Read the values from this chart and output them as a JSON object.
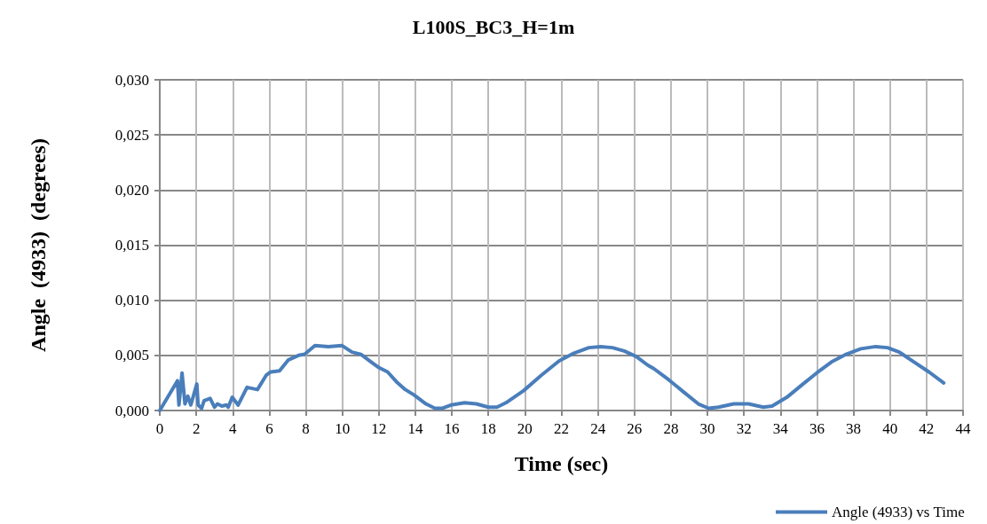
{
  "chart_data": {
    "type": "line",
    "title": "L100S_BC3_H=1m",
    "xlabel": "Time (sec)",
    "ylabel": "Angle  (4933)  (degrees)",
    "x": [
      0,
      0.97,
      1.05,
      1.22,
      1.38,
      1.54,
      1.7,
      2.03,
      2.1,
      2.29,
      2.43,
      2.76,
      3.0,
      3.16,
      3.4,
      3.65,
      3.75,
      3.97,
      4.29,
      4.78,
      5.35,
      5.83,
      6.08,
      6.56,
      7.05,
      7.6,
      7.94,
      8.5,
      9.24,
      9.97,
      10.53,
      11.02,
      11.5,
      12.0,
      12.48,
      12.97,
      13.45,
      13.94,
      14.58,
      15.07,
      15.46,
      15.95,
      16.7,
      17.34,
      18.0,
      18.47,
      18.96,
      19.93,
      20.9,
      21.88,
      22.69,
      23.5,
      24.15,
      24.8,
      25.44,
      26.1,
      26.74,
      27.06,
      27.87,
      28.68,
      29.5,
      30.06,
      30.6,
      31.44,
      32.25,
      33.06,
      33.54,
      34.35,
      35.16,
      35.98,
      36.79,
      37.6,
      38.4,
      39.22,
      39.86,
      40.51,
      41.32,
      42.13,
      42.94
    ],
    "series": [
      {
        "name": "Angle (4933) vs Time",
        "color": "#4a7ebb",
        "values": [
          0,
          0.0027,
          0.0005,
          0.0034,
          0.0006,
          0.0013,
          0.0005,
          0.0024,
          0.0005,
          0.0002,
          0.0009,
          0.0011,
          0.0003,
          0.0006,
          0.0004,
          0.0005,
          0.0003,
          0.0012,
          0.0005,
          0.0021,
          0.0019,
          0.0032,
          0.0035,
          0.0036,
          0.0046,
          0.005,
          0.0051,
          0.0059,
          0.0058,
          0.0059,
          0.0053,
          0.0051,
          0.0045,
          0.0039,
          0.0035,
          0.0026,
          0.0019,
          0.0014,
          0.0006,
          0.0002,
          0.0002,
          0.0005,
          0.0007,
          0.0006,
          0.0003,
          0.0003,
          0.0007,
          0.0018,
          0.0032,
          0.0045,
          0.0052,
          0.0057,
          0.0058,
          0.0057,
          0.0054,
          0.0049,
          0.0041,
          0.0038,
          0.0028,
          0.0017,
          0.0006,
          0.0002,
          0.0003,
          0.0006,
          0.0006,
          0.0003,
          0.0004,
          0.0012,
          0.0023,
          0.0034,
          0.0044,
          0.0051,
          0.0056,
          0.0058,
          0.0057,
          0.0053,
          0.0044,
          0.0035,
          0.0025
        ]
      }
    ],
    "xlim": [
      0,
      44
    ],
    "xticks": [
      0,
      2,
      4,
      6,
      8,
      10,
      12,
      14,
      16,
      18,
      20,
      22,
      24,
      26,
      28,
      30,
      32,
      34,
      36,
      38,
      40,
      42,
      44
    ],
    "ylim": [
      0,
      0.03
    ],
    "yticks": [
      {
        "value": 0,
        "label": "0,000"
      },
      {
        "value": 0.005,
        "label": "0,005"
      },
      {
        "value": 0.01,
        "label": "0,010"
      },
      {
        "value": 0.015,
        "label": "0,015"
      },
      {
        "value": 0.02,
        "label": "0,020"
      },
      {
        "value": 0.025,
        "label": "0,025"
      },
      {
        "value": 0.03,
        "label": "0,030"
      }
    ],
    "grid": true,
    "legend": "bottom right",
    "marker": "none",
    "line_style": "solid"
  }
}
